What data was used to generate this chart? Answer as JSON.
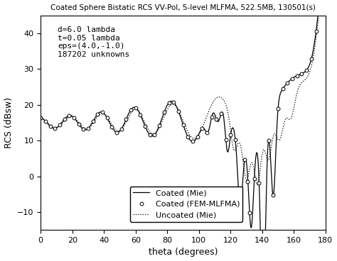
{
  "title": "Coated Sphere Bistatic RCS VV-Pol, 5-level MLFMA, 522.5MB, 130501(s)",
  "xlabel": "theta (degrees)",
  "ylabel": "RCS (dBsw)",
  "annotation": "d=6.0 lambda\nt=0.05 lambda\neps=(4.0,-1.0)\n187202 unknowns",
  "xlim": [
    0,
    180
  ],
  "ylim": [
    -15,
    45
  ],
  "yticks": [
    -10,
    0,
    10,
    20,
    30,
    40
  ],
  "xticks": [
    0,
    20,
    40,
    60,
    80,
    100,
    120,
    140,
    160,
    180
  ],
  "legend_labels": [
    "Coated (Mie)",
    "Coated (FEM-MLFMA)",
    "Uncoated (Mie)"
  ],
  "line_color": "#000000",
  "circle_color": "#000000",
  "background": "#ffffff",
  "fem_n_points": 61,
  "title_fontsize": 7.5,
  "label_fontsize": 9,
  "tick_fontsize": 8,
  "annot_fontsize": 8
}
